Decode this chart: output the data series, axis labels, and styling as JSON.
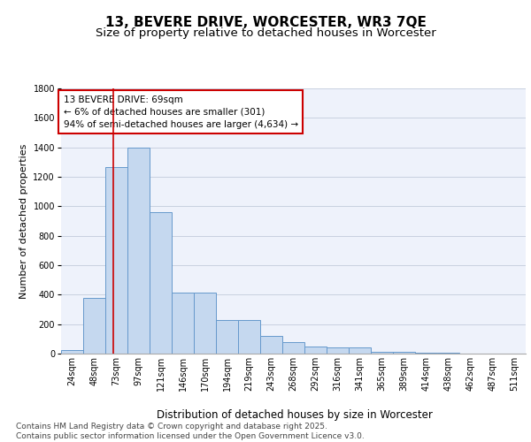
{
  "title": "13, BEVERE DRIVE, WORCESTER, WR3 7QE",
  "subtitle": "Size of property relative to detached houses in Worcester",
  "xlabel": "Distribution of detached houses by size in Worcester",
  "ylabel": "Number of detached properties",
  "categories": [
    "24sqm",
    "48sqm",
    "73sqm",
    "97sqm",
    "121sqm",
    "146sqm",
    "170sqm",
    "194sqm",
    "219sqm",
    "243sqm",
    "268sqm",
    "292sqm",
    "316sqm",
    "341sqm",
    "365sqm",
    "389sqm",
    "414sqm",
    "438sqm",
    "462sqm",
    "487sqm",
    "511sqm"
  ],
  "values": [
    25,
    380,
    1265,
    1400,
    960,
    415,
    415,
    230,
    230,
    120,
    80,
    50,
    40,
    40,
    15,
    15,
    8,
    8,
    3,
    3,
    0
  ],
  "bar_color": "#c5d8ef",
  "bar_edge_color": "#6699cc",
  "vline_color": "#cc0000",
  "vline_pos": 1.85,
  "annotation_text": "13 BEVERE DRIVE: 69sqm\n← 6% of detached houses are smaller (301)\n94% of semi-detached houses are larger (4,634) →",
  "ylim": [
    0,
    1800
  ],
  "yticks": [
    0,
    200,
    400,
    600,
    800,
    1000,
    1200,
    1400,
    1600,
    1800
  ],
  "background_color": "#eef2fb",
  "grid_color": "#c8d0e0",
  "footer_text": "Contains HM Land Registry data © Crown copyright and database right 2025.\nContains public sector information licensed under the Open Government Licence v3.0.",
  "title_fontsize": 11,
  "subtitle_fontsize": 9.5,
  "ylabel_fontsize": 8,
  "xlabel_fontsize": 8.5,
  "tick_fontsize": 7,
  "annotation_fontsize": 7.5,
  "footer_fontsize": 6.5
}
